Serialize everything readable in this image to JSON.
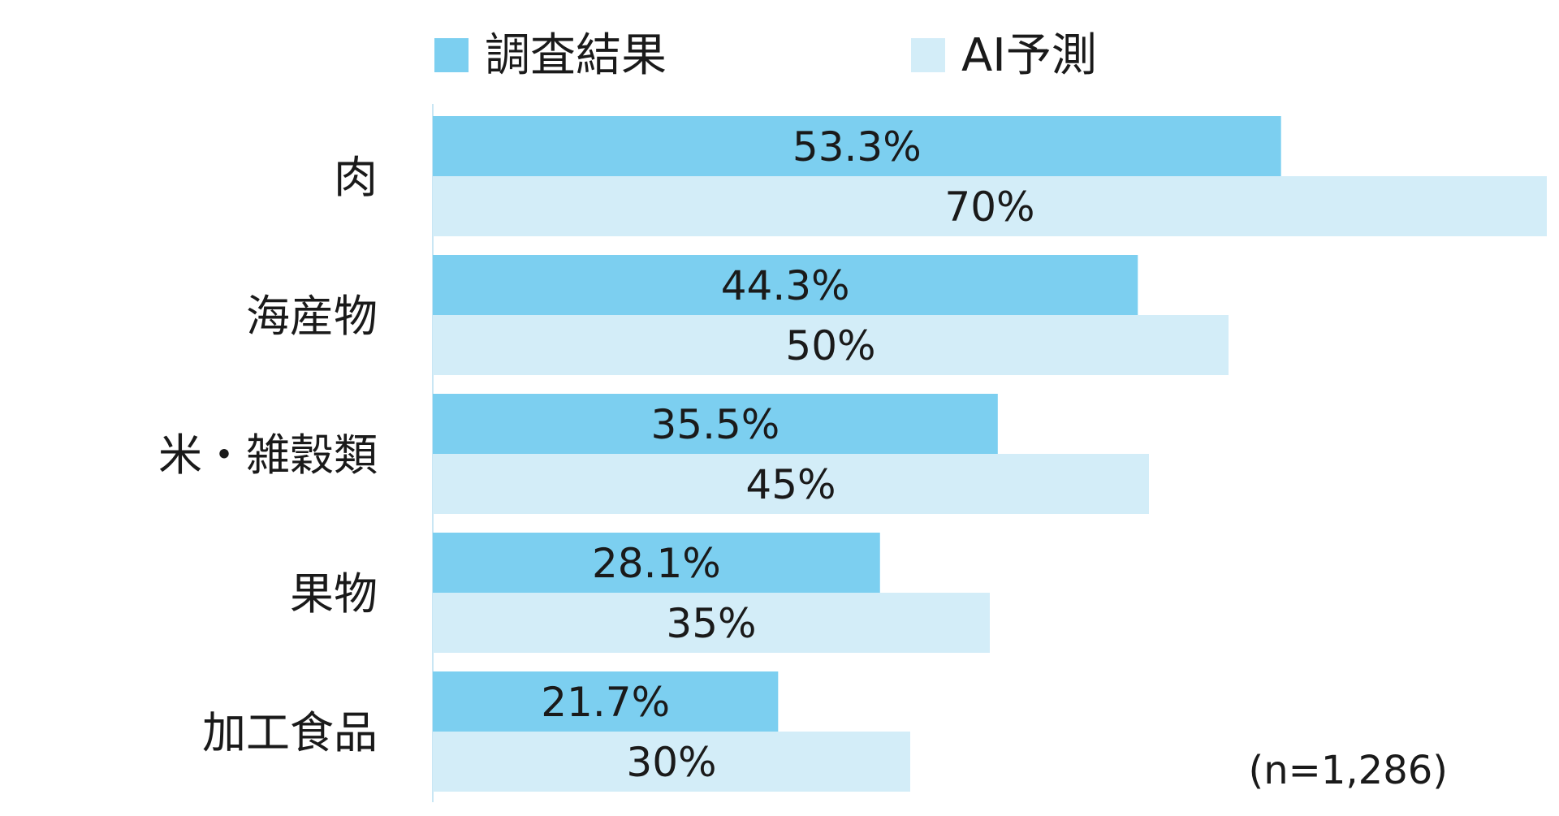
{
  "chart_data": {
    "type": "bar",
    "orientation": "horizontal",
    "categories": [
      "肉",
      "海産物",
      "米・雑穀類",
      "果物",
      "加工食品"
    ],
    "series": [
      {
        "name": "調査結果",
        "values": [
          53.3,
          44.3,
          35.5,
          28.1,
          21.7
        ],
        "labels": [
          "53.3%",
          "44.3%",
          "35.5%",
          "28.1%",
          "21.7%"
        ],
        "color": "#7ccff0"
      },
      {
        "name": "AI予測",
        "values": [
          70,
          50,
          45,
          35,
          30
        ],
        "labels": [
          "70%",
          "50%",
          "45%",
          "35%",
          "30%"
        ],
        "color": "#d3edf8"
      }
    ],
    "note": "(n=1,286)",
    "xlim": [
      0,
      100
    ],
    "grid": false,
    "legend": "top",
    "axis_color": "#c9e6f4"
  }
}
